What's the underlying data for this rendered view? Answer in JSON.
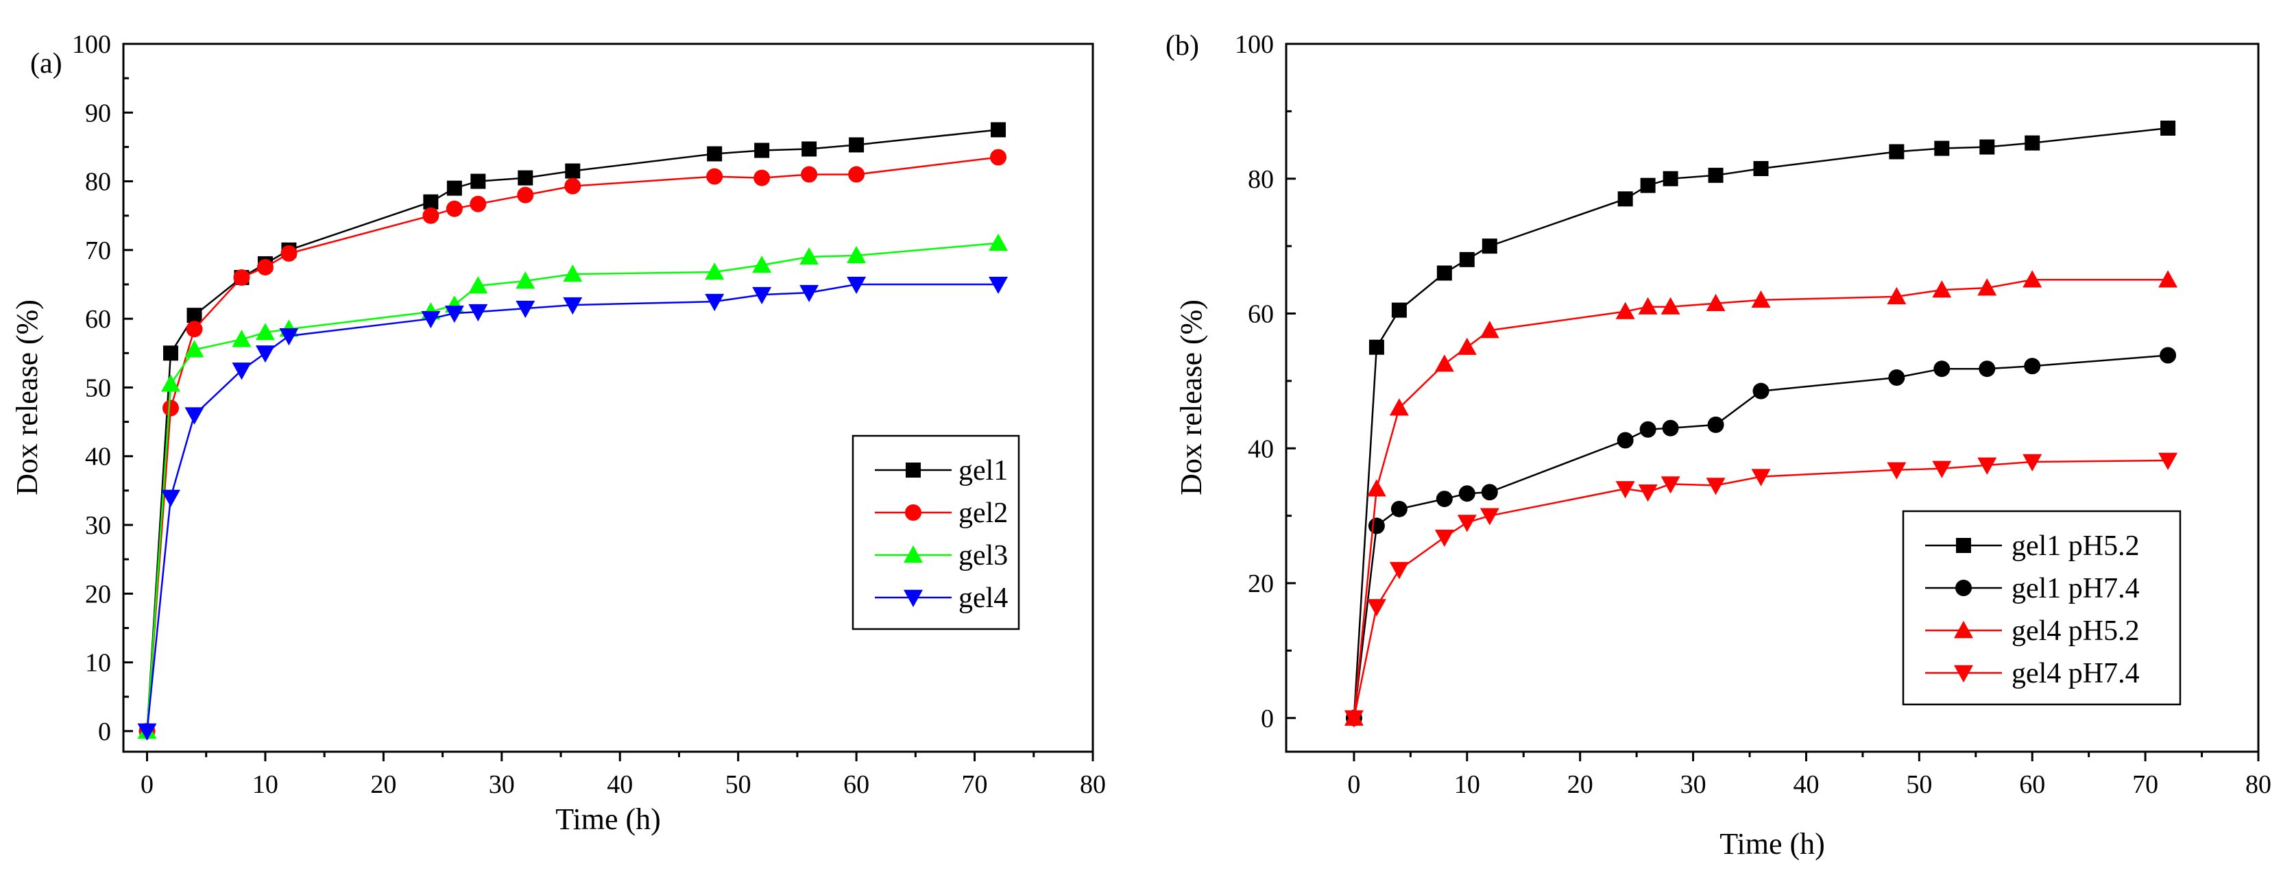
{
  "colors": {
    "black": "#000000",
    "red": "#ff0000",
    "green": "#00ff00",
    "blue": "#0000ff"
  },
  "chart_data": [
    {
      "type": "line",
      "panel_label": "(a)",
      "xlabel": "Time (h)",
      "ylabel": "Dox release (%)",
      "xlim": [
        -2,
        80
      ],
      "ylim": [
        -3,
        100
      ],
      "xticks": [
        0,
        10,
        20,
        30,
        40,
        50,
        60,
        70,
        80
      ],
      "yticks": [
        0,
        10,
        20,
        30,
        40,
        50,
        60,
        70,
        80,
        90,
        100
      ],
      "legend_position": "right-middle",
      "x": [
        0,
        2,
        4,
        8,
        10,
        12,
        24,
        26,
        28,
        32,
        36,
        48,
        52,
        56,
        60,
        72
      ],
      "series": [
        {
          "name": "gel1",
          "color": "#000000",
          "marker": "square",
          "values": [
            0,
            55,
            60.5,
            66,
            68,
            70,
            77,
            79,
            80,
            80.5,
            81.5,
            84,
            84.5,
            84.7,
            85.3,
            87.5
          ]
        },
        {
          "name": "gel2",
          "color": "#ff0000",
          "marker": "circle",
          "values": [
            0,
            47,
            58.5,
            66,
            67.5,
            69.5,
            75,
            76,
            76.7,
            78,
            79.3,
            80.7,
            80.5,
            81,
            81,
            83.5
          ]
        },
        {
          "name": "gel3",
          "color": "#00ff00",
          "marker": "triangle-up",
          "values": [
            0,
            50.5,
            55.5,
            57,
            58,
            58.5,
            61,
            62,
            64.8,
            65.5,
            66.5,
            66.8,
            67.8,
            69,
            69.2,
            71
          ]
        },
        {
          "name": "gel4",
          "color": "#0000ff",
          "marker": "triangle-down",
          "values": [
            0,
            34,
            46,
            52.5,
            55,
            57.5,
            60,
            60.8,
            61,
            61.5,
            62,
            62.5,
            63.5,
            63.8,
            65,
            65
          ]
        }
      ]
    },
    {
      "type": "line",
      "panel_label": "(b)",
      "xlabel": "Time (h)",
      "ylabel": "Dox release (%)",
      "xlim": [
        -6,
        80
      ],
      "ylim": [
        -5,
        100
      ],
      "xticks": [
        0,
        10,
        20,
        30,
        40,
        50,
        60,
        70,
        80
      ],
      "yticks": [
        0,
        20,
        40,
        60,
        80,
        100
      ],
      "legend_position": "bottom-right",
      "x": [
        0,
        2,
        4,
        8,
        10,
        12,
        24,
        26,
        28,
        32,
        36,
        48,
        52,
        56,
        60,
        72
      ],
      "series": [
        {
          "name": "gel1 pH5.2",
          "color": "#000000",
          "marker": "square",
          "values": [
            0,
            55,
            60.5,
            66,
            68,
            70,
            77,
            79,
            80,
            80.5,
            81.5,
            84,
            84.5,
            84.7,
            85.3,
            87.5
          ]
        },
        {
          "name": "gel1 pH7.4",
          "color": "#000000",
          "marker": "circle",
          "values": [
            0,
            28.5,
            31,
            32.5,
            33.3,
            33.5,
            41.2,
            42.8,
            43,
            43.5,
            48.5,
            50.5,
            51.8,
            51.8,
            52.2,
            53.8
          ]
        },
        {
          "name": "gel4 pH5.2",
          "color": "#ff0000",
          "marker": "triangle-up",
          "values": [
            0,
            34,
            46,
            52.5,
            55,
            57.5,
            60.3,
            61,
            61,
            61.5,
            62,
            62.5,
            63.5,
            63.8,
            65,
            65
          ]
        },
        {
          "name": "gel4 pH7.4",
          "color": "#ff0000",
          "marker": "triangle-down",
          "values": [
            0,
            16.5,
            22,
            26.8,
            29,
            30,
            34,
            33.5,
            34.7,
            34.5,
            35.8,
            36.8,
            37,
            37.5,
            38,
            38.2
          ]
        }
      ]
    }
  ]
}
